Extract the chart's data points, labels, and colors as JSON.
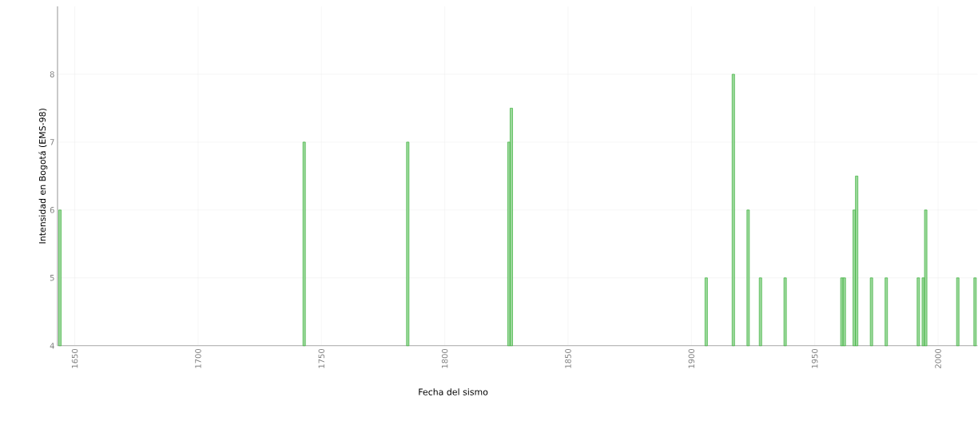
{
  "chart_data": {
    "type": "bar",
    "xlabel": "Fecha del sismo",
    "ylabel": "Intensidad en Bogotá (EMS-98)",
    "x": [
      1644,
      1743,
      1785,
      1826,
      1827,
      1906,
      1917,
      1923,
      1928,
      1938,
      1961,
      1962,
      1966,
      1967,
      1973,
      1979,
      1992,
      1994,
      1995,
      2008,
      2015
    ],
    "values": [
      6,
      7,
      7,
      7,
      7.5,
      5,
      8,
      6,
      5,
      5,
      5,
      5,
      6,
      6.5,
      5,
      5,
      5,
      5,
      6,
      5,
      5
    ],
    "color": "#22a822",
    "xlim": [
      1643,
      2016
    ],
    "xticks": [
      1650,
      1700,
      1750,
      1800,
      1850,
      1900,
      1950,
      2000
    ],
    "ylim": [
      4,
      9
    ],
    "yticks": [
      4,
      5,
      6,
      7,
      8
    ],
    "grid": true
  }
}
